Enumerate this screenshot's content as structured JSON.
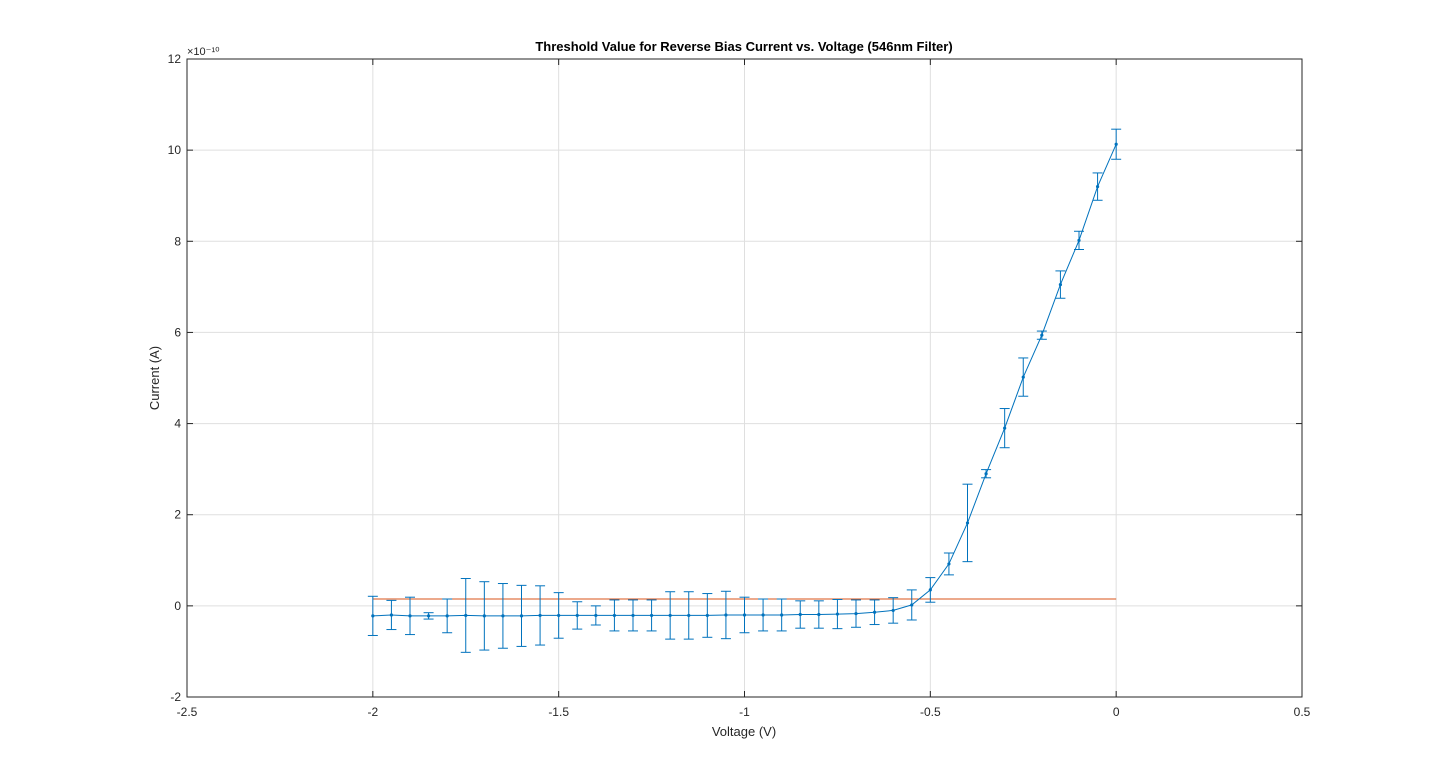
{
  "chart_data": {
    "type": "line",
    "title": "Threshold Value for Reverse Bias Current vs. Voltage (546nm Filter)",
    "xlabel": "Voltage (V)",
    "ylabel": "Current (A)",
    "y_exponent_label": "×10⁻¹⁰",
    "xlim": [
      -2.5,
      0.5
    ],
    "ylim": [
      -2,
      12
    ],
    "y_scale_factor": "1e-10",
    "grid": true,
    "xticks": [
      -2.5,
      -2,
      -1.5,
      -1,
      -0.5,
      0,
      0.5
    ],
    "xtick_labels": [
      "-2.5",
      "-2",
      "-1.5",
      "-1",
      "-0.5",
      "0",
      "0.5"
    ],
    "yticks": [
      -2,
      0,
      2,
      4,
      6,
      8,
      10,
      12
    ],
    "ytick_labels": [
      "-2",
      "0",
      "2",
      "4",
      "6",
      "8",
      "10",
      "12"
    ],
    "colors": {
      "data": "#0072bd",
      "threshold": "#d95319",
      "grid": "#dfdfdf",
      "axis": "#262626"
    },
    "series": [
      {
        "x": [
          -2.0,
          -1.95,
          -1.9,
          -1.85,
          -1.8,
          -1.75,
          -1.7,
          -1.65,
          -1.6,
          -1.55,
          -1.5,
          -1.45,
          -1.4,
          -1.35,
          -1.3,
          -1.25,
          -1.2,
          -1.15,
          -1.1,
          -1.05,
          -1.0,
          -0.95,
          -0.9,
          -0.85,
          -0.8,
          -0.75,
          -0.7,
          -0.65,
          -0.6,
          -0.55,
          -0.5,
          -0.45,
          -0.4,
          -0.35,
          -0.3,
          -0.25,
          -0.2,
          -0.15,
          -0.1,
          -0.05,
          0.0
        ],
        "y": [
          -0.22,
          -0.2,
          -0.22,
          -0.22,
          -0.22,
          -0.21,
          -0.22,
          -0.22,
          -0.22,
          -0.21,
          -0.21,
          -0.21,
          -0.21,
          -0.21,
          -0.21,
          -0.21,
          -0.21,
          -0.21,
          -0.21,
          -0.2,
          -0.2,
          -0.2,
          -0.2,
          -0.19,
          -0.19,
          -0.18,
          -0.17,
          -0.14,
          -0.1,
          0.02,
          0.35,
          0.92,
          1.82,
          2.9,
          3.9,
          5.02,
          5.94,
          7.05,
          8.02,
          9.2,
          10.13
        ],
        "err": [
          0.43,
          0.32,
          0.41,
          0.07,
          0.37,
          0.81,
          0.75,
          0.71,
          0.67,
          0.65,
          0.5,
          0.3,
          0.21,
          0.34,
          0.34,
          0.34,
          0.52,
          0.52,
          0.48,
          0.52,
          0.39,
          0.35,
          0.35,
          0.3,
          0.3,
          0.32,
          0.3,
          0.27,
          0.28,
          0.33,
          0.27,
          0.24,
          0.85,
          0.09,
          0.43,
          0.42,
          0.09,
          0.3,
          0.2,
          0.3,
          0.33
        ]
      },
      {
        "x": [
          -2.0,
          0.0
        ],
        "y": [
          0.15,
          0.15
        ]
      }
    ]
  }
}
